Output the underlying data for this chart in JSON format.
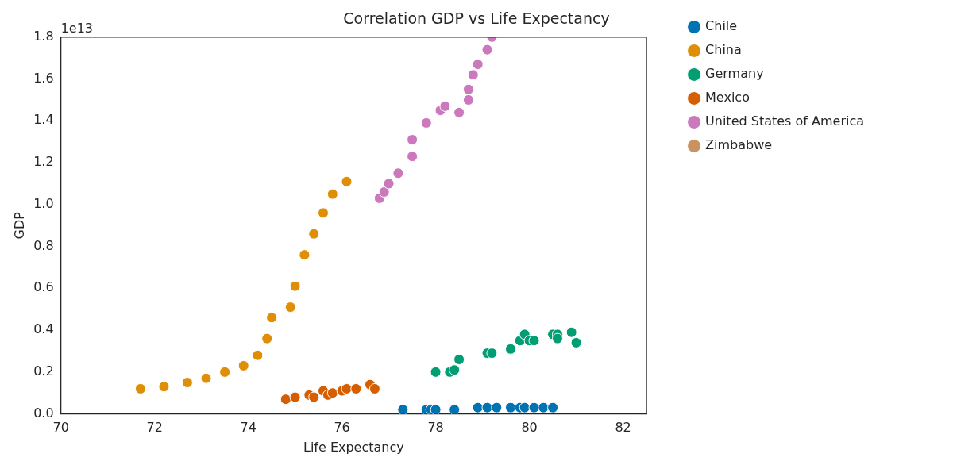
{
  "chart_data": {
    "type": "scatter",
    "title": "Correlation GDP vs Life Expectancy",
    "xlabel": "Life Expectancy",
    "ylabel": "GDP",
    "annotations": [
      "1e13"
    ],
    "xlim": [
      70,
      82.5
    ],
    "xticks": [
      70,
      72,
      74,
      76,
      78,
      80,
      82
    ],
    "ylim": [
      0,
      1.8
    ],
    "yticks": [
      {
        "value": 0,
        "label": "0.0"
      },
      0.2,
      0.4,
      0.6,
      0.8,
      {
        "value": 1,
        "label": "1.0"
      },
      1.2,
      1.4,
      1.6,
      1.8
    ],
    "grid": false,
    "legend": "right",
    "marker": "circle",
    "series": [
      {
        "name": "Chile",
        "color": "#0173b2",
        "x": [
          77.3,
          77.8,
          77.9,
          78.0,
          78.4,
          78.9,
          79.1,
          79.3,
          79.6,
          79.8,
          79.9,
          80.1,
          80.3,
          80.5
        ],
        "values": [
          0.02,
          0.02,
          0.02,
          0.02,
          0.02,
          0.03,
          0.03,
          0.03,
          0.03,
          0.03,
          0.03,
          0.03,
          0.03,
          0.03
        ]
      },
      {
        "name": "China",
        "color": "#de8f05",
        "x": [
          71.7,
          72.2,
          72.7,
          73.1,
          73.5,
          73.9,
          74.2,
          74.4,
          74.5,
          74.9,
          75.0,
          75.2,
          75.4,
          75.6,
          75.8,
          76.1
        ],
        "values": [
          0.12,
          0.13,
          0.15,
          0.17,
          0.2,
          0.23,
          0.28,
          0.36,
          0.46,
          0.51,
          0.61,
          0.76,
          0.86,
          0.96,
          1.05,
          1.11
        ]
      },
      {
        "name": "Germany",
        "color": "#029e73",
        "x": [
          78.0,
          78.3,
          78.4,
          78.5,
          79.1,
          79.2,
          79.6,
          79.8,
          79.9,
          80.0,
          80.1,
          80.5,
          80.6,
          80.6,
          80.9,
          81.0
        ],
        "values": [
          0.2,
          0.2,
          0.21,
          0.26,
          0.29,
          0.29,
          0.31,
          0.35,
          0.38,
          0.35,
          0.35,
          0.38,
          0.38,
          0.36,
          0.39,
          0.34
        ]
      },
      {
        "name": "Mexico",
        "color": "#d55e00",
        "x": [
          74.8,
          75.0,
          75.3,
          75.4,
          75.6,
          75.7,
          75.8,
          76.0,
          76.1,
          76.3,
          76.6,
          76.7
        ],
        "values": [
          0.07,
          0.08,
          0.09,
          0.08,
          0.11,
          0.09,
          0.1,
          0.11,
          0.12,
          0.12,
          0.14,
          0.12
        ]
      },
      {
        "name": "United States of America",
        "color": "#cc78bc",
        "x": [
          76.8,
          76.9,
          77.0,
          77.2,
          77.5,
          77.5,
          77.8,
          78.1,
          78.2,
          78.5,
          78.7,
          78.7,
          78.8,
          78.9,
          79.1,
          79.2
        ],
        "values": [
          1.03,
          1.06,
          1.1,
          1.15,
          1.23,
          1.31,
          1.39,
          1.45,
          1.47,
          1.44,
          1.5,
          1.55,
          1.62,
          1.67,
          1.74,
          1.8
        ]
      },
      {
        "name": "Zimbabwe",
        "color": "#ca9161"
      }
    ]
  }
}
